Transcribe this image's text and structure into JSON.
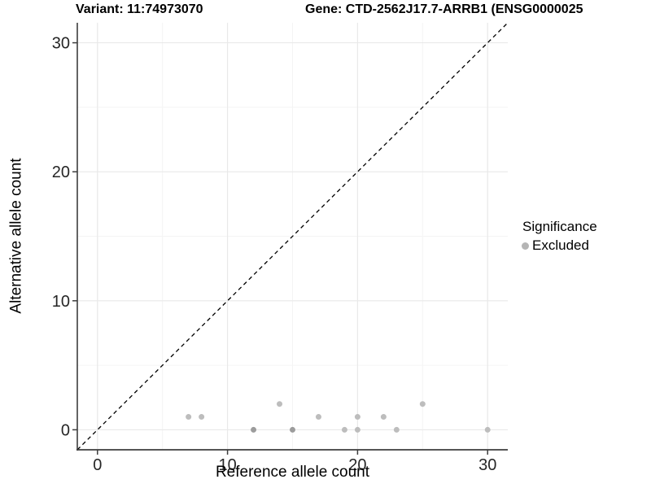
{
  "titles": {
    "variant": "Variant: 11:74973070",
    "gene": "Gene: CTD-2562J17.7-ARRB1 (ENSG0000025"
  },
  "legend": {
    "title": "Significance",
    "items": [
      {
        "label": "Excluded",
        "color": "#b5b5b5"
      }
    ]
  },
  "chart_data": {
    "type": "scatter",
    "title": "Variant: 11:74973070  Gene: CTD-2562J17.7-ARRB1 (ENSG0000025",
    "xlabel": "Reference allele count",
    "ylabel": "Alternative allele count",
    "xlim": [
      -1.55,
      31.55
    ],
    "ylim": [
      -1.55,
      31.55
    ],
    "x_ticks": [
      0,
      10,
      20,
      30
    ],
    "y_ticks": [
      0,
      10,
      20,
      30
    ],
    "x_minor_ticks": [
      5,
      15,
      25
    ],
    "y_minor_ticks": [
      5,
      15,
      25
    ],
    "grid": true,
    "legend_position": "right",
    "identity_line": {
      "style": "dashed",
      "color": "#000000",
      "from": [
        -1.55,
        -1.55
      ],
      "to": [
        31.55,
        31.55
      ]
    },
    "series": [
      {
        "name": "Excluded",
        "color": "#bdbdbd",
        "overplot_color": "#9c9c9c",
        "points": [
          {
            "x": 7,
            "y": 1
          },
          {
            "x": 8,
            "y": 1
          },
          {
            "x": 12,
            "y": 0,
            "shade": "dark"
          },
          {
            "x": 14,
            "y": 2
          },
          {
            "x": 15,
            "y": 0,
            "shade": "dark"
          },
          {
            "x": 17,
            "y": 1
          },
          {
            "x": 19,
            "y": 0
          },
          {
            "x": 20,
            "y": 0
          },
          {
            "x": 20,
            "y": 1
          },
          {
            "x": 22,
            "y": 1
          },
          {
            "x": 23,
            "y": 0
          },
          {
            "x": 25,
            "y": 2
          },
          {
            "x": 30,
            "y": 0
          }
        ]
      }
    ],
    "style": {
      "background": "#ffffff",
      "grid_major": "#e9e9e9",
      "grid_minor": "#f4f4f4",
      "axis_line": "#3d3d3d",
      "tick_color": "#3d3d3d",
      "tick_label_color": "#262626",
      "point_radius": 3.5
    }
  }
}
